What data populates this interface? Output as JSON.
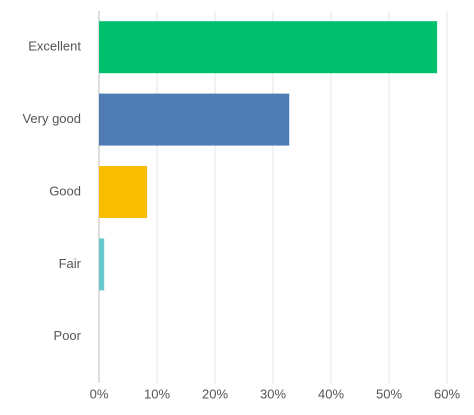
{
  "chart_data": {
    "type": "bar",
    "orientation": "horizontal",
    "categories": [
      "Excellent",
      "Very good",
      "Good",
      "Fair",
      "Poor"
    ],
    "values": [
      58.3,
      32.8,
      8.3,
      0.9,
      0
    ],
    "colors": [
      "#00bf6f",
      "#507cb6",
      "#f9be00",
      "#6bc8cd",
      "#a0a0a0"
    ],
    "xlim": [
      0,
      60
    ],
    "xticks": [
      {
        "value": 0,
        "label": "0%"
      },
      {
        "value": 10,
        "label": "10%"
      },
      {
        "value": 20,
        "label": "20%"
      },
      {
        "value": 30,
        "label": "30%"
      },
      {
        "value": 40,
        "label": "40%"
      },
      {
        "value": 50,
        "label": "50%"
      },
      {
        "value": 60,
        "label": "60%"
      }
    ],
    "grid": true
  }
}
